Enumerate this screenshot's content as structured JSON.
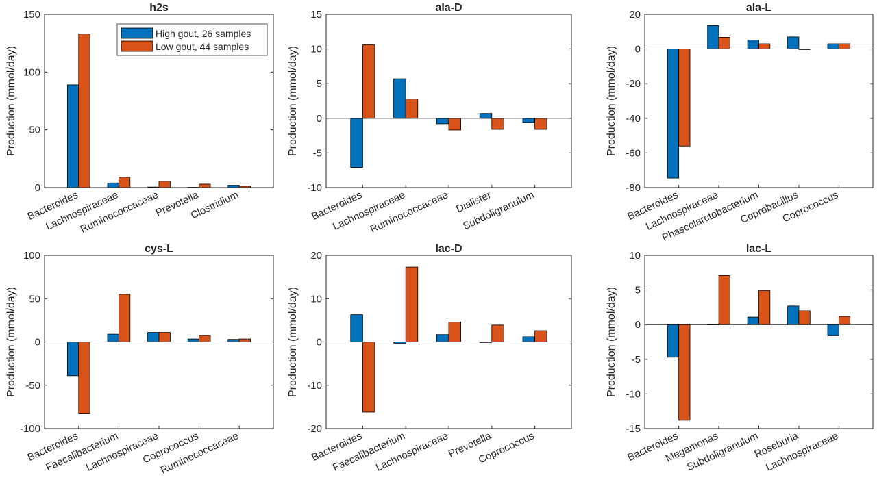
{
  "colors": {
    "high": "#0072BD",
    "low": "#D95319",
    "axis": "#262626",
    "background": "#ffffff"
  },
  "legend": {
    "placement": "top-right",
    "entries": [
      "High gout, 26 samples",
      "Low gout, 44 samples"
    ]
  },
  "chart_data": [
    {
      "type": "bar",
      "title": "h2s",
      "ylabel": "Production (mmol/day)",
      "ylim": [
        0,
        150
      ],
      "yticks": [
        0,
        50,
        100,
        150
      ],
      "categories": [
        "Bacteroides",
        "Lachnospiraceae",
        "Ruminococcaceae",
        "Prevotella",
        "Clostridium"
      ],
      "series": [
        {
          "name": "High gout, 26 samples",
          "values": [
            89,
            4,
            0.5,
            0.3,
            2
          ]
        },
        {
          "name": "Low gout, 44 samples",
          "values": [
            133,
            9,
            5.5,
            3,
            1.2
          ]
        }
      ]
    },
    {
      "type": "bar",
      "title": "ala-D",
      "ylabel": "Production (mmol/day)",
      "ylim": [
        -10,
        15
      ],
      "yticks": [
        -10,
        -5,
        0,
        5,
        10,
        15
      ],
      "categories": [
        "Bacteroides",
        "Lachnospiraceae",
        "Ruminococcaceae",
        "Dialister",
        "Subdoligranulum"
      ],
      "series": [
        {
          "name": "High gout, 26 samples",
          "values": [
            -7.1,
            5.7,
            -0.8,
            0.7,
            -0.6
          ]
        },
        {
          "name": "Low gout, 44 samples",
          "values": [
            10.6,
            2.8,
            -1.7,
            -1.6,
            -1.6
          ]
        }
      ]
    },
    {
      "type": "bar",
      "title": "ala-L",
      "ylabel": "Production (mmol/day)",
      "ylim": [
        -80,
        20
      ],
      "yticks": [
        -80,
        -60,
        -40,
        -20,
        0,
        20
      ],
      "categories": [
        "Bacteroides",
        "Lachnospiraceae",
        "Phascolarctobacterium",
        "Coprobacillus",
        "Coprococcus"
      ],
      "series": [
        {
          "name": "High gout, 26 samples",
          "values": [
            -74.5,
            13.5,
            5.2,
            7,
            3
          ]
        },
        {
          "name": "Low gout, 44 samples",
          "values": [
            -56,
            6.8,
            3,
            -0.3,
            3
          ]
        }
      ]
    },
    {
      "type": "bar",
      "title": "cys-L",
      "ylabel": "Production (mmol/day)",
      "ylim": [
        -100,
        100
      ],
      "yticks": [
        -100,
        -50,
        0,
        50,
        100
      ],
      "categories": [
        "Bacteroides",
        "Faecalibacterium",
        "Lachnospiraceae",
        "Coprococcus",
        "Ruminococcaceae"
      ],
      "series": [
        {
          "name": "High gout, 26 samples",
          "values": [
            -39,
            9,
            11,
            3.5,
            3
          ]
        },
        {
          "name": "Low gout, 44 samples",
          "values": [
            -83,
            55,
            11,
            7.5,
            3.5
          ]
        }
      ]
    },
    {
      "type": "bar",
      "title": "lac-D",
      "ylabel": "Production (mmol/day)",
      "ylim": [
        -20,
        20
      ],
      "yticks": [
        -20,
        -10,
        0,
        10,
        20
      ],
      "categories": [
        "Bacteroides",
        "Faecalibacterium",
        "Lachnospiraceae",
        "Prevotella",
        "Coprococcus"
      ],
      "series": [
        {
          "name": "High gout, 26 samples",
          "values": [
            6.3,
            -0.3,
            1.7,
            -0.1,
            1.2
          ]
        },
        {
          "name": "Low gout, 44 samples",
          "values": [
            -16.2,
            17.3,
            4.6,
            3.9,
            2.6
          ]
        }
      ]
    },
    {
      "type": "bar",
      "title": "lac-L",
      "ylabel": "Production (mmol/day)",
      "ylim": [
        -15,
        10
      ],
      "yticks": [
        -15,
        -10,
        -5,
        0,
        5,
        10
      ],
      "categories": [
        "Bacteroides",
        "Megamonas",
        "Subdoligranulum",
        "Roseburia",
        "Lachnospiraceae"
      ],
      "series": [
        {
          "name": "High gout, 26 samples",
          "values": [
            -4.7,
            0.05,
            1.1,
            2.7,
            -1.6
          ]
        },
        {
          "name": "Low gout, 44 samples",
          "values": [
            -13.8,
            7.1,
            4.9,
            2.0,
            1.2
          ]
        }
      ]
    }
  ]
}
